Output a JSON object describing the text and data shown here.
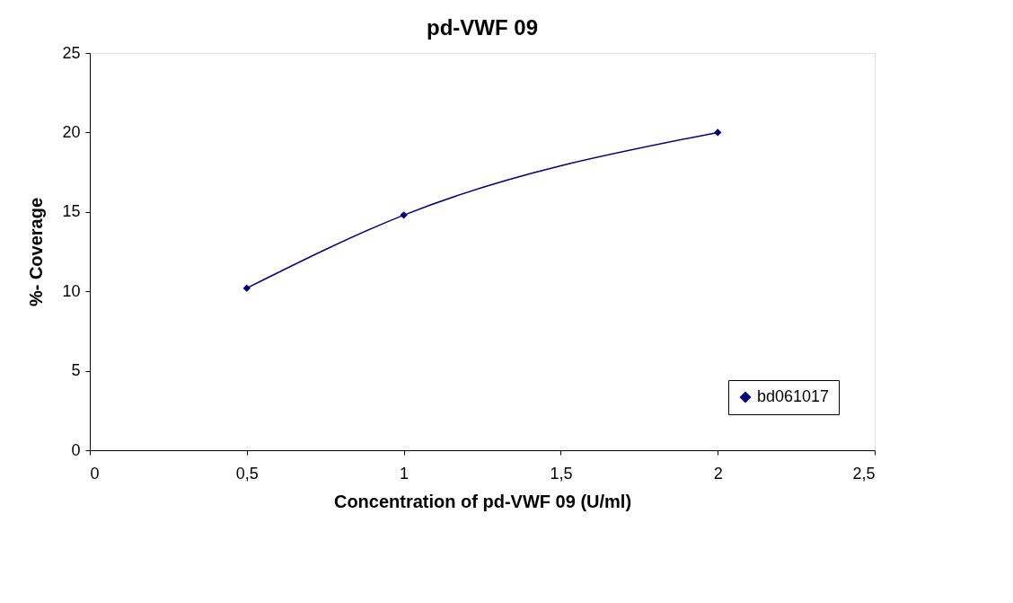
{
  "chart_data": {
    "type": "line",
    "title": "pd-VWF 09",
    "xlabel": "Concentration of pd-VWF 09 (U/ml)",
    "ylabel": "%- Coverage",
    "x": [
      0.5,
      1,
      2
    ],
    "series": [
      {
        "name": "bd061017",
        "color": "#000080",
        "values": [
          10.2,
          14.8,
          20.0
        ]
      }
    ],
    "xlim": [
      0,
      2.5
    ],
    "xticks": [
      0,
      {
        "value": 0.5,
        "label": "0,5"
      },
      1,
      {
        "value": 1.5,
        "label": "1,5"
      },
      2,
      {
        "value": 2.5,
        "label": "2,5"
      }
    ],
    "ylim": [
      0,
      25
    ],
    "yticks": [
      0,
      5,
      10,
      15,
      20,
      25
    ],
    "grid": false,
    "legend": "bottom right",
    "marker": "diamond",
    "line_style": "solid"
  }
}
